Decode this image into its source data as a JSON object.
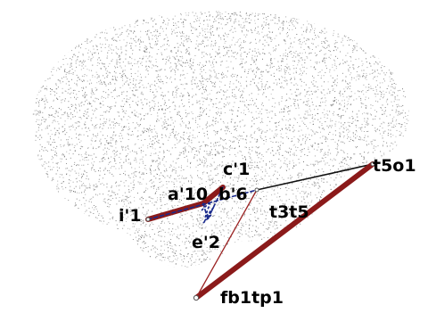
{
  "colors": {
    "background": "#ffffff",
    "brain_dots": "#6e6e6e",
    "strong_connection": "#8b1a1a",
    "weak_connection_red": "#9b2323",
    "connection_black": "#111111",
    "connection_blue": "#1a2a8c",
    "node_outline": "#555555"
  },
  "nodes": [
    {
      "id": "i1",
      "label": "i'1"
    },
    {
      "id": "a10",
      "label": "a'10"
    },
    {
      "id": "c1",
      "label": "c'1"
    },
    {
      "id": "b6",
      "label": "b'6"
    },
    {
      "id": "t5o1",
      "label": "t5o1"
    },
    {
      "id": "t3t5",
      "label": "t3t5"
    },
    {
      "id": "e2",
      "label": "e'2"
    },
    {
      "id": "fb1tp1",
      "label": "fb1tp1"
    }
  ],
  "edges": [
    {
      "from": "i1",
      "to": "a10",
      "style": "strong"
    },
    {
      "from": "a10",
      "to": "c1",
      "style": "strong"
    },
    {
      "from": "b6",
      "to": "t5o1",
      "style": "black"
    },
    {
      "from": "fb1tp1",
      "to": "t5o1",
      "style": "strong"
    },
    {
      "from": "fb1tp1",
      "to": "b6",
      "style": "thin-red"
    },
    {
      "from": "i1",
      "to": "b6",
      "style": "blue-dashed"
    },
    {
      "from": "a10",
      "to": "e2",
      "style": "blue-dashed"
    },
    {
      "from": "c1",
      "to": "e2",
      "style": "blue-dashed"
    }
  ]
}
